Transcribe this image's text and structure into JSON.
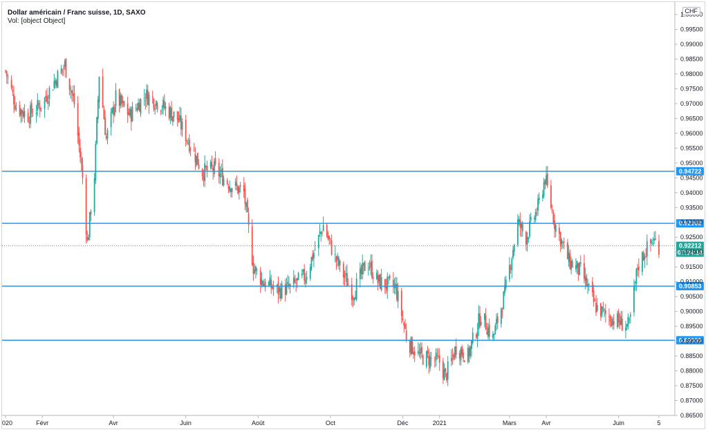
{
  "header": {
    "title": "Dollar américain / Franc suisse, 1D, SAXO",
    "volume_label": "Vol: [object Object]",
    "currency": "CHF"
  },
  "colors": {
    "up": "#26a69a",
    "down": "#ef5350",
    "level_line": "#2196f3",
    "last_price": "#26a69a",
    "grid": "#e0e3eb"
  },
  "chart_data": {
    "type": "candlestick",
    "symbol": "Dollar américain / Franc suisse",
    "interval": "1D",
    "source": "SAXO",
    "ylim": [
      0.865,
      1.0
    ],
    "y_ticks": [
      "0.86500",
      "0.87000",
      "0.87500",
      "0.88000",
      "0.88500",
      "0.89000",
      "0.89500",
      "0.90000",
      "0.90500",
      "0.91000",
      "0.91500",
      "0.92000",
      "0.92500",
      "0.93000",
      "0.93500",
      "0.94000",
      "0.94500",
      "0.95000",
      "0.95500",
      "0.96000",
      "0.96500",
      "0.97000",
      "0.97500",
      "0.98000",
      "0.98500",
      "0.99000",
      "0.99500",
      "1.00000"
    ],
    "x_ticks": [
      {
        "label": "2020",
        "date": "2020-01-01"
      },
      {
        "label": "Févr",
        "date": "2020-02-01"
      },
      {
        "label": "Avr",
        "date": "2020-04-01"
      },
      {
        "label": "Juin",
        "date": "2020-06-01"
      },
      {
        "label": "Août",
        "date": "2020-08-01"
      },
      {
        "label": "Oct",
        "date": "2020-10-01"
      },
      {
        "label": "Déc",
        "date": "2020-12-01"
      },
      {
        "label": "2021",
        "date": "2021-01-01"
      },
      {
        "label": "Mars",
        "date": "2021-03-01"
      },
      {
        "label": "Avr",
        "date": "2021-04-01"
      },
      {
        "label": "Juin",
        "date": "2021-06-01"
      },
      {
        "label": "5",
        "date": "2021-07-05"
      }
    ],
    "levels": [
      {
        "value": 0.94722,
        "label": "0.94722"
      },
      {
        "value": 0.92968,
        "label": "0.92968"
      },
      {
        "value": 0.90853,
        "label": "0.90853"
      },
      {
        "value": 0.8903,
        "label": "0.89030"
      }
    ],
    "last_price": {
      "value": 0.92212,
      "label": "0.92212",
      "countdown": "07:34:14"
    },
    "price_path": [
      {
        "date": "2020-01-01",
        "close": 0.981
      },
      {
        "date": "2020-01-10",
        "close": 0.969
      },
      {
        "date": "2020-01-20",
        "close": 0.966
      },
      {
        "date": "2020-02-01",
        "close": 0.97
      },
      {
        "date": "2020-02-12",
        "close": 0.978
      },
      {
        "date": "2020-02-20",
        "close": 0.983
      },
      {
        "date": "2020-02-28",
        "close": 0.97
      },
      {
        "date": "2020-03-06",
        "close": 0.945
      },
      {
        "date": "2020-03-10",
        "close": 0.923
      },
      {
        "date": "2020-03-16",
        "close": 0.946
      },
      {
        "date": "2020-03-20",
        "close": 0.98
      },
      {
        "date": "2020-03-26",
        "close": 0.958
      },
      {
        "date": "2020-04-03",
        "close": 0.972
      },
      {
        "date": "2020-04-15",
        "close": 0.966
      },
      {
        "date": "2020-04-28",
        "close": 0.973
      },
      {
        "date": "2020-05-10",
        "close": 0.97
      },
      {
        "date": "2020-05-25",
        "close": 0.965
      },
      {
        "date": "2020-06-05",
        "close": 0.956
      },
      {
        "date": "2020-06-15",
        "close": 0.947
      },
      {
        "date": "2020-06-25",
        "close": 0.948
      },
      {
        "date": "2020-07-08",
        "close": 0.943
      },
      {
        "date": "2020-07-20",
        "close": 0.94
      },
      {
        "date": "2020-07-28",
        "close": 0.915
      },
      {
        "date": "2020-08-05",
        "close": 0.91
      },
      {
        "date": "2020-08-18",
        "close": 0.907
      },
      {
        "date": "2020-08-28",
        "close": 0.908
      },
      {
        "date": "2020-09-10",
        "close": 0.912
      },
      {
        "date": "2020-09-25",
        "close": 0.929
      },
      {
        "date": "2020-10-05",
        "close": 0.918
      },
      {
        "date": "2020-10-20",
        "close": 0.906
      },
      {
        "date": "2020-11-01",
        "close": 0.917
      },
      {
        "date": "2020-11-10",
        "close": 0.91
      },
      {
        "date": "2020-11-25",
        "close": 0.908
      },
      {
        "date": "2020-12-05",
        "close": 0.89
      },
      {
        "date": "2020-12-15",
        "close": 0.885
      },
      {
        "date": "2021-01-01",
        "close": 0.883
      },
      {
        "date": "2021-01-06",
        "close": 0.878
      },
      {
        "date": "2021-01-15",
        "close": 0.888
      },
      {
        "date": "2021-01-25",
        "close": 0.885
      },
      {
        "date": "2021-02-05",
        "close": 0.899
      },
      {
        "date": "2021-02-15",
        "close": 0.891
      },
      {
        "date": "2021-02-25",
        "close": 0.906
      },
      {
        "date": "2021-03-08",
        "close": 0.93
      },
      {
        "date": "2021-03-15",
        "close": 0.925
      },
      {
        "date": "2021-03-25",
        "close": 0.935
      },
      {
        "date": "2021-03-31",
        "close": 0.945
      },
      {
        "date": "2021-04-08",
        "close": 0.93
      },
      {
        "date": "2021-04-20",
        "close": 0.917
      },
      {
        "date": "2021-05-01",
        "close": 0.913
      },
      {
        "date": "2021-05-12",
        "close": 0.902
      },
      {
        "date": "2021-05-20",
        "close": 0.899
      },
      {
        "date": "2021-06-04",
        "close": 0.896
      },
      {
        "date": "2021-06-10",
        "close": 0.895
      },
      {
        "date": "2021-06-17",
        "close": 0.915
      },
      {
        "date": "2021-06-23",
        "close": 0.92
      },
      {
        "date": "2021-06-30",
        "close": 0.924
      },
      {
        "date": "2021-07-05",
        "close": 0.9221
      }
    ]
  }
}
